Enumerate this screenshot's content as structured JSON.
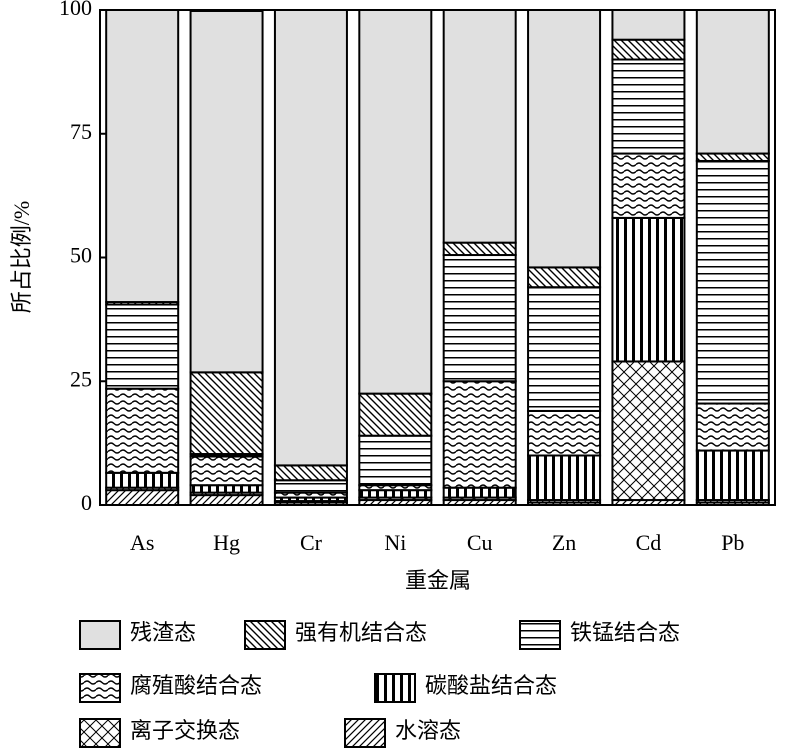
{
  "chart_data": {
    "type": "stacked-bar",
    "y_label": "所占比例/%",
    "x_label": "重金属",
    "categories": [
      "As",
      "Hg",
      "Cr",
      "Ni",
      "Cu",
      "Zn",
      "Cd",
      "Pb"
    ],
    "ylim": [
      0,
      100
    ],
    "yticks": [
      0,
      25,
      50,
      75,
      100
    ],
    "series": [
      {
        "name": "水溶态",
        "pattern": "diagonal-up",
        "values": [
          3,
          2,
          0.5,
          1,
          1,
          0.5,
          1,
          0.5
        ]
      },
      {
        "name": "离子交换态",
        "pattern": "crosshatch",
        "values": [
          0.5,
          0.5,
          0.3,
          0.5,
          0.5,
          0.5,
          28,
          0.5
        ]
      },
      {
        "name": "碳酸盐结合态",
        "pattern": "vertical",
        "values": [
          3,
          1.5,
          0.7,
          1.5,
          2,
          9,
          29,
          10
        ]
      },
      {
        "name": "腐殖酸结合态",
        "pattern": "wave",
        "values": [
          17,
          5.8,
          1,
          1,
          21.5,
          9,
          13,
          9.5
        ]
      },
      {
        "name": "铁锰结合态",
        "pattern": "horizontal",
        "values": [
          17,
          0.5,
          2.5,
          10,
          25.5,
          25,
          19,
          49
        ]
      },
      {
        "name": "强有机结合态",
        "pattern": "diagonal-down",
        "values": [
          0.5,
          16.5,
          3,
          8.5,
          2.5,
          4,
          4,
          1.5
        ]
      },
      {
        "name": "残渣态",
        "pattern": "solid",
        "color": "#e0e0e0",
        "values": [
          59,
          73,
          92,
          77.5,
          47,
          52,
          6,
          29
        ]
      }
    ]
  }
}
